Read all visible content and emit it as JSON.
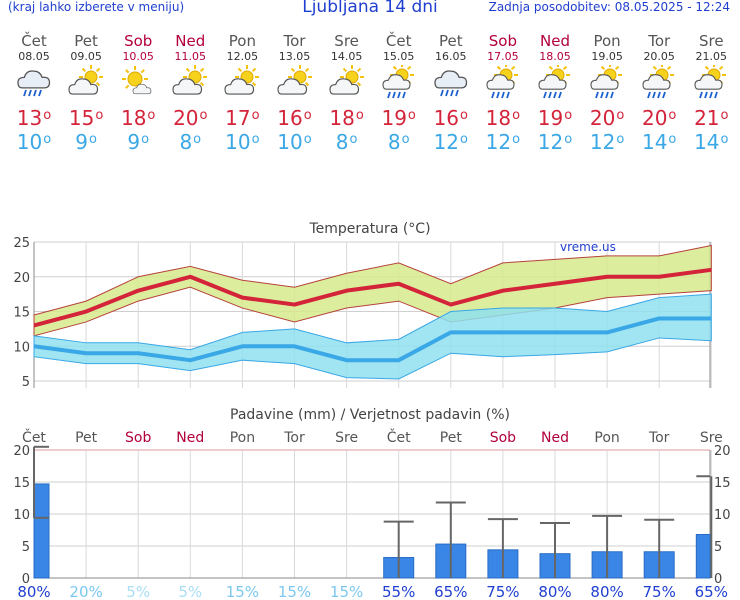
{
  "header": {
    "left_note": "(kraj lahko izberete v meniju)",
    "title": "Ljubljana 14 dni",
    "updated": "Zadnja posodobitev: 08.05.2025 - 12:24"
  },
  "colors": {
    "header_blue": "#1f3fd0",
    "weekend": "#b3003a",
    "max_temp": "#d4243a",
    "min_temp": "#3aa7e6",
    "max_band": "#d6ea8c",
    "min_band": "#8fe0ee",
    "precip_bar": "#3a86e6"
  },
  "days": [
    {
      "name": "Čet",
      "date": "08.05",
      "weekend": false,
      "icon": "rain-cloud-icon",
      "tmax": "13",
      "tmin": "10"
    },
    {
      "name": "Pet",
      "date": "09.05",
      "weekend": false,
      "icon": "sun-cloud-icon",
      "tmax": "15",
      "tmin": "9"
    },
    {
      "name": "Sob",
      "date": "10.05",
      "weekend": true,
      "icon": "sun-small-cloud-icon",
      "tmax": "18",
      "tmin": "9"
    },
    {
      "name": "Ned",
      "date": "11.05",
      "weekend": true,
      "icon": "sun-cloud-icon",
      "tmax": "20",
      "tmin": "8"
    },
    {
      "name": "Pon",
      "date": "12.05",
      "weekend": false,
      "icon": "sun-cloud-icon",
      "tmax": "17",
      "tmin": "10"
    },
    {
      "name": "Tor",
      "date": "13.05",
      "weekend": false,
      "icon": "sun-cloud-icon",
      "tmax": "16",
      "tmin": "10"
    },
    {
      "name": "Sre",
      "date": "14.05",
      "weekend": false,
      "icon": "sun-cloud-icon",
      "tmax": "18",
      "tmin": "8"
    },
    {
      "name": "Čet",
      "date": "15.05",
      "weekend": false,
      "icon": "sun-rain-icon",
      "tmax": "19",
      "tmin": "8"
    },
    {
      "name": "Pet",
      "date": "16.05",
      "weekend": false,
      "icon": "rain-cloud-icon",
      "tmax": "16",
      "tmin": "12"
    },
    {
      "name": "Sob",
      "date": "17.05",
      "weekend": true,
      "icon": "sun-rain-icon",
      "tmax": "18",
      "tmin": "12"
    },
    {
      "name": "Ned",
      "date": "18.05",
      "weekend": true,
      "icon": "sun-rain-icon",
      "tmax": "19",
      "tmin": "12"
    },
    {
      "name": "Pon",
      "date": "19.05",
      "weekend": false,
      "icon": "sun-rain-icon",
      "tmax": "20",
      "tmin": "12"
    },
    {
      "name": "Tor",
      "date": "20.05",
      "weekend": false,
      "icon": "sun-rain-icon",
      "tmax": "20",
      "tmin": "14"
    },
    {
      "name": "Sre",
      "date": "21.05",
      "weekend": false,
      "icon": "sun-rain-icon",
      "tmax": "21",
      "tmin": "14"
    }
  ],
  "chart_data": [
    {
      "type": "line",
      "title": "Temperatura (°C)",
      "watermark": "vreme.us",
      "ylim": [
        4,
        25
      ],
      "yticks": [
        5,
        10,
        15,
        20,
        25
      ],
      "grid": true,
      "max_temp": [
        13,
        15,
        18,
        20,
        17,
        16,
        18,
        19,
        16,
        18,
        19,
        20,
        20,
        21
      ],
      "max_temp_high": [
        14.5,
        16.5,
        20,
        21.5,
        19.5,
        18.5,
        20.5,
        22,
        19,
        22,
        22.5,
        23,
        23,
        24.5
      ],
      "max_temp_low": [
        11.5,
        13.5,
        16.5,
        18.5,
        15.5,
        13.5,
        15.5,
        16.5,
        13.5,
        14.5,
        15.5,
        17,
        17.5,
        18
      ],
      "min_temp": [
        10,
        9,
        9,
        8,
        10,
        10,
        8,
        8,
        12,
        12,
        12,
        12,
        14,
        14
      ],
      "min_temp_high": [
        11.5,
        10.5,
        10.5,
        9.5,
        12,
        12.5,
        10.5,
        11,
        15,
        15.5,
        15.5,
        15,
        17,
        17.5
      ],
      "min_temp_low": [
        8.5,
        7.5,
        7.5,
        6.5,
        8,
        7.5,
        5.5,
        5.3,
        9,
        8.5,
        8.8,
        9.2,
        11.2,
        10.8
      ]
    },
    {
      "type": "bar",
      "title": "Padavine (mm) / Verjetnost padavin (%)",
      "ylim": [
        0,
        20
      ],
      "yticks": [
        0,
        5,
        10,
        15,
        20
      ],
      "categories": [
        "Čet",
        "Pet",
        "Sob",
        "Ned",
        "Pon",
        "Tor",
        "Sre",
        "Čet",
        "Pet",
        "Sob",
        "Ned",
        "Pon",
        "Tor",
        "Sre"
      ],
      "weekend": [
        false,
        false,
        true,
        true,
        false,
        false,
        false,
        false,
        false,
        true,
        true,
        false,
        false,
        false
      ],
      "values": [
        14.7,
        0,
        0,
        0,
        0,
        0,
        0,
        3.2,
        5.3,
        4.4,
        3.8,
        4.1,
        4.1,
        6.8
      ],
      "error_high": [
        20.5,
        0,
        0,
        0,
        0,
        0,
        0,
        8.8,
        11.8,
        9.2,
        8.6,
        9.7,
        9.1,
        15.9
      ],
      "error_low": [
        9.4,
        0,
        0,
        0,
        0,
        0,
        0,
        0,
        0,
        0,
        0,
        0,
        0,
        0
      ],
      "probability": [
        "80%",
        "20%",
        "5%",
        "5%",
        "15%",
        "15%",
        "15%",
        "55%",
        "65%",
        "75%",
        "80%",
        "80%",
        "75%",
        "65%"
      ],
      "probability_value": [
        80,
        20,
        5,
        5,
        15,
        15,
        15,
        55,
        65,
        75,
        80,
        80,
        75,
        65
      ]
    }
  ]
}
